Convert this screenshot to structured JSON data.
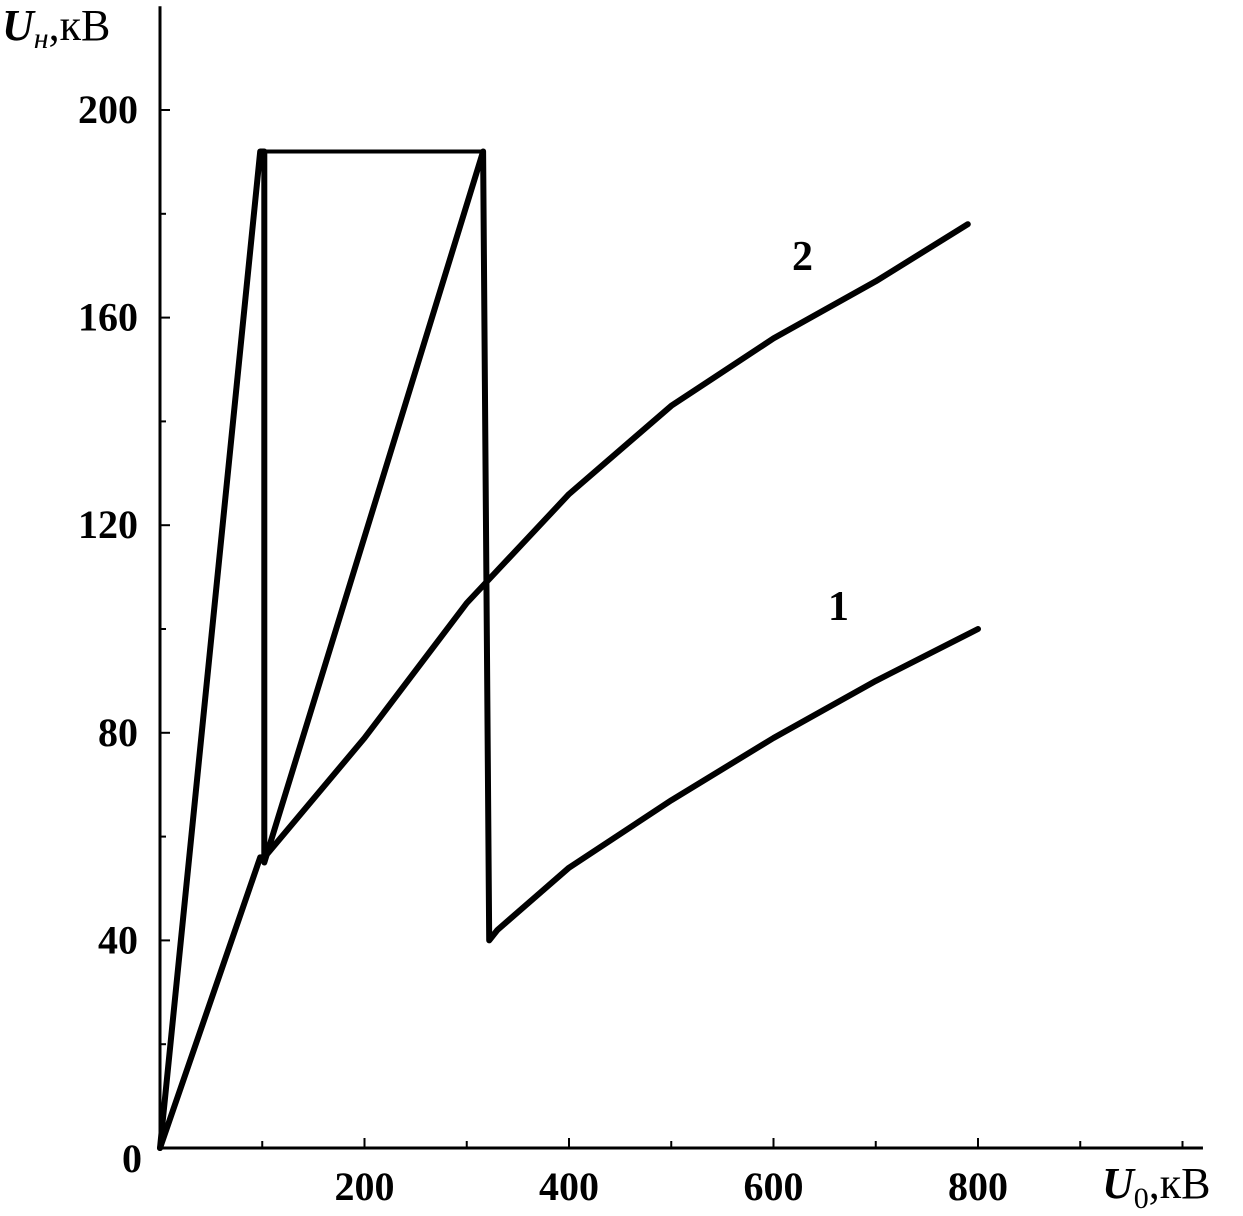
{
  "chart_data": {
    "type": "line",
    "xlabel": {
      "var": "U",
      "sub": "0",
      "unit": ",кВ"
    },
    "ylabel": {
      "var": "U",
      "sub": "н",
      "unit": ",кВ"
    },
    "xlim": [
      0,
      1020
    ],
    "ylim": [
      0,
      220
    ],
    "x_ticks": [
      200,
      400,
      600,
      800
    ],
    "y_ticks": [
      40,
      80,
      120,
      160,
      200
    ],
    "origin_label": "0",
    "grid": false,
    "series": [
      {
        "name": "1",
        "points": [
          [
            0,
            0
          ],
          [
            98,
            192
          ],
          [
            102,
            192
          ],
          [
            316,
            192
          ],
          [
            322,
            40
          ],
          [
            330,
            42
          ],
          [
            400,
            54
          ],
          [
            500,
            67
          ],
          [
            600,
            79
          ],
          [
            700,
            90
          ],
          [
            800,
            100
          ]
        ],
        "thick": [
          [
            0,
            0
          ],
          [
            98,
            192
          ],
          [
            102,
            192
          ],
          [
            102,
            55
          ],
          [
            316,
            192
          ],
          [
            322,
            40
          ],
          [
            330,
            42
          ],
          [
            400,
            54
          ],
          [
            500,
            67
          ],
          [
            600,
            79
          ],
          [
            700,
            90
          ],
          [
            800,
            100
          ]
        ]
      },
      {
        "name": "2",
        "points": [
          [
            0,
            0
          ],
          [
            98,
            56
          ],
          [
            102,
            56
          ],
          [
            200,
            79
          ],
          [
            300,
            105
          ],
          [
            400,
            126
          ],
          [
            500,
            143
          ],
          [
            600,
            156
          ],
          [
            700,
            167
          ],
          [
            790,
            178
          ]
        ]
      }
    ]
  }
}
